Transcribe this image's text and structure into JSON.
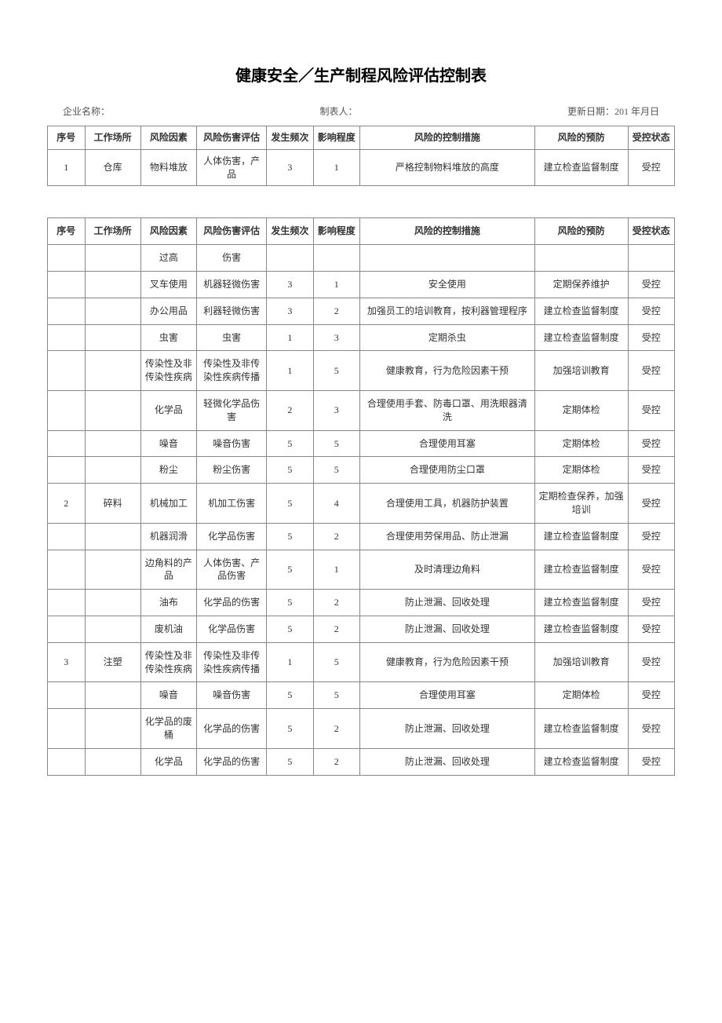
{
  "title": "健康安全／生产制程风险评估控制表",
  "meta": {
    "company_label": "企业名称：",
    "preparer_label": "制表人：",
    "date_label": "更新日期：201 年月日"
  },
  "headers": {
    "seq": "序号",
    "place": "工作场所",
    "factor": "风险因素",
    "eval": "风险伤害评估",
    "freq": "发生频次",
    "impact": "影响程度",
    "measure": "风险的控制措施",
    "prevent": "风险的预防",
    "status": "受控状态"
  },
  "table1_rows": [
    {
      "seq": "1",
      "place": "仓库",
      "factor": "物料堆放",
      "eval": "人体伤害，产品",
      "freq": "3",
      "impact": "1",
      "measure": "严格控制物料堆放的高度",
      "prevent": "建立检查监督制度",
      "status": "受控"
    }
  ],
  "table2_rows": [
    {
      "seq": "",
      "place": "",
      "factor": "过高",
      "eval": "伤害",
      "freq": "",
      "impact": "",
      "measure": "",
      "prevent": "",
      "status": ""
    },
    {
      "seq": "",
      "place": "",
      "factor": "叉车使用",
      "eval": "机器轻微伤害",
      "freq": "3",
      "impact": "1",
      "measure": "安全使用",
      "prevent": "定期保养维护",
      "status": "受控"
    },
    {
      "seq": "",
      "place": "",
      "factor": "办公用品",
      "eval": "利器轻微伤害",
      "freq": "3",
      "impact": "2",
      "measure": "加强员工的培训教育，按利器管理程序",
      "prevent": "建立检查监督制度",
      "status": "受控"
    },
    {
      "seq": "",
      "place": "",
      "factor": "虫害",
      "eval": "虫害",
      "freq": "1",
      "impact": "3",
      "measure": "定期杀虫",
      "prevent": "建立检查监督制度",
      "status": "受控"
    },
    {
      "seq": "",
      "place": "",
      "factor": "传染性及非传染性疾病",
      "eval": "传染性及非传染性疾病传播",
      "freq": "1",
      "impact": "5",
      "measure": "健康教育，行为危险因素干预",
      "prevent": "加强培训教育",
      "status": "受控"
    },
    {
      "seq": "",
      "place": "",
      "factor": "化学品",
      "eval": "轻微化学品伤害",
      "freq": "2",
      "impact": "3",
      "measure": "合理使用手套、防毒口罩、用洗眼器清洗",
      "prevent": "定期体检",
      "status": "受控"
    },
    {
      "seq": "",
      "place": "",
      "factor": "噪音",
      "eval": "噪音伤害",
      "freq": "5",
      "impact": "5",
      "measure": "合理使用耳塞",
      "prevent": "定期体检",
      "status": "受控"
    },
    {
      "seq": "",
      "place": "",
      "factor": "粉尘",
      "eval": "粉尘伤害",
      "freq": "5",
      "impact": "5",
      "measure": "合理使用防尘口罩",
      "prevent": "定期体检",
      "status": "受控"
    },
    {
      "seq": "2",
      "place": "碎料",
      "factor": "机械加工",
      "eval": "机加工伤害",
      "freq": "5",
      "impact": "4",
      "measure": "合理使用工具，机器防护装置",
      "prevent": "定期检查保养，加强培训",
      "status": "受控"
    },
    {
      "seq": "",
      "place": "",
      "factor": "机器润滑",
      "eval": "化学品伤害",
      "freq": "5",
      "impact": "2",
      "measure": "合理使用劳保用品、防止泄漏",
      "prevent": "建立检查监督制度",
      "status": "受控"
    },
    {
      "seq": "",
      "place": "",
      "factor": "边角料的产品",
      "eval": "人体伤害、产品伤害",
      "freq": "5",
      "impact": "1",
      "measure": "及时清理边角料",
      "prevent": "建立检查监督制度",
      "status": "受控"
    },
    {
      "seq": "",
      "place": "",
      "factor": "油布",
      "eval": "化学品的伤害",
      "freq": "5",
      "impact": "2",
      "measure": "防止泄漏、回收处理",
      "prevent": "建立检查监督制度",
      "status": "受控"
    },
    {
      "seq": "",
      "place": "",
      "factor": "废机油",
      "eval": "化学品伤害",
      "freq": "5",
      "impact": "2",
      "measure": "防止泄漏、回收处理",
      "prevent": "建立检查监督制度",
      "status": "受控"
    },
    {
      "seq": "3",
      "place": "注塑",
      "factor": "传染性及非传染性疾病",
      "eval": "传染性及非传染性疾病传播",
      "freq": "1",
      "impact": "5",
      "measure": "健康教育，行为危险因素干预",
      "prevent": "加强培训教育",
      "status": "受控"
    },
    {
      "seq": "",
      "place": "",
      "factor": "噪音",
      "eval": "噪音伤害",
      "freq": "5",
      "impact": "5",
      "measure": "合理使用耳塞",
      "prevent": "定期体检",
      "status": "受控"
    },
    {
      "seq": "",
      "place": "",
      "factor": "化学品的废桶",
      "eval": "化学品的伤害",
      "freq": "5",
      "impact": "2",
      "measure": "防止泄漏、回收处理",
      "prevent": "建立检查监督制度",
      "status": "受控"
    },
    {
      "seq": "",
      "place": "",
      "factor": "化学品",
      "eval": "化学品的伤害",
      "freq": "5",
      "impact": "2",
      "measure": "防止泄漏、回收处理",
      "prevent": "建立检查监督制度",
      "status": "受控"
    }
  ]
}
